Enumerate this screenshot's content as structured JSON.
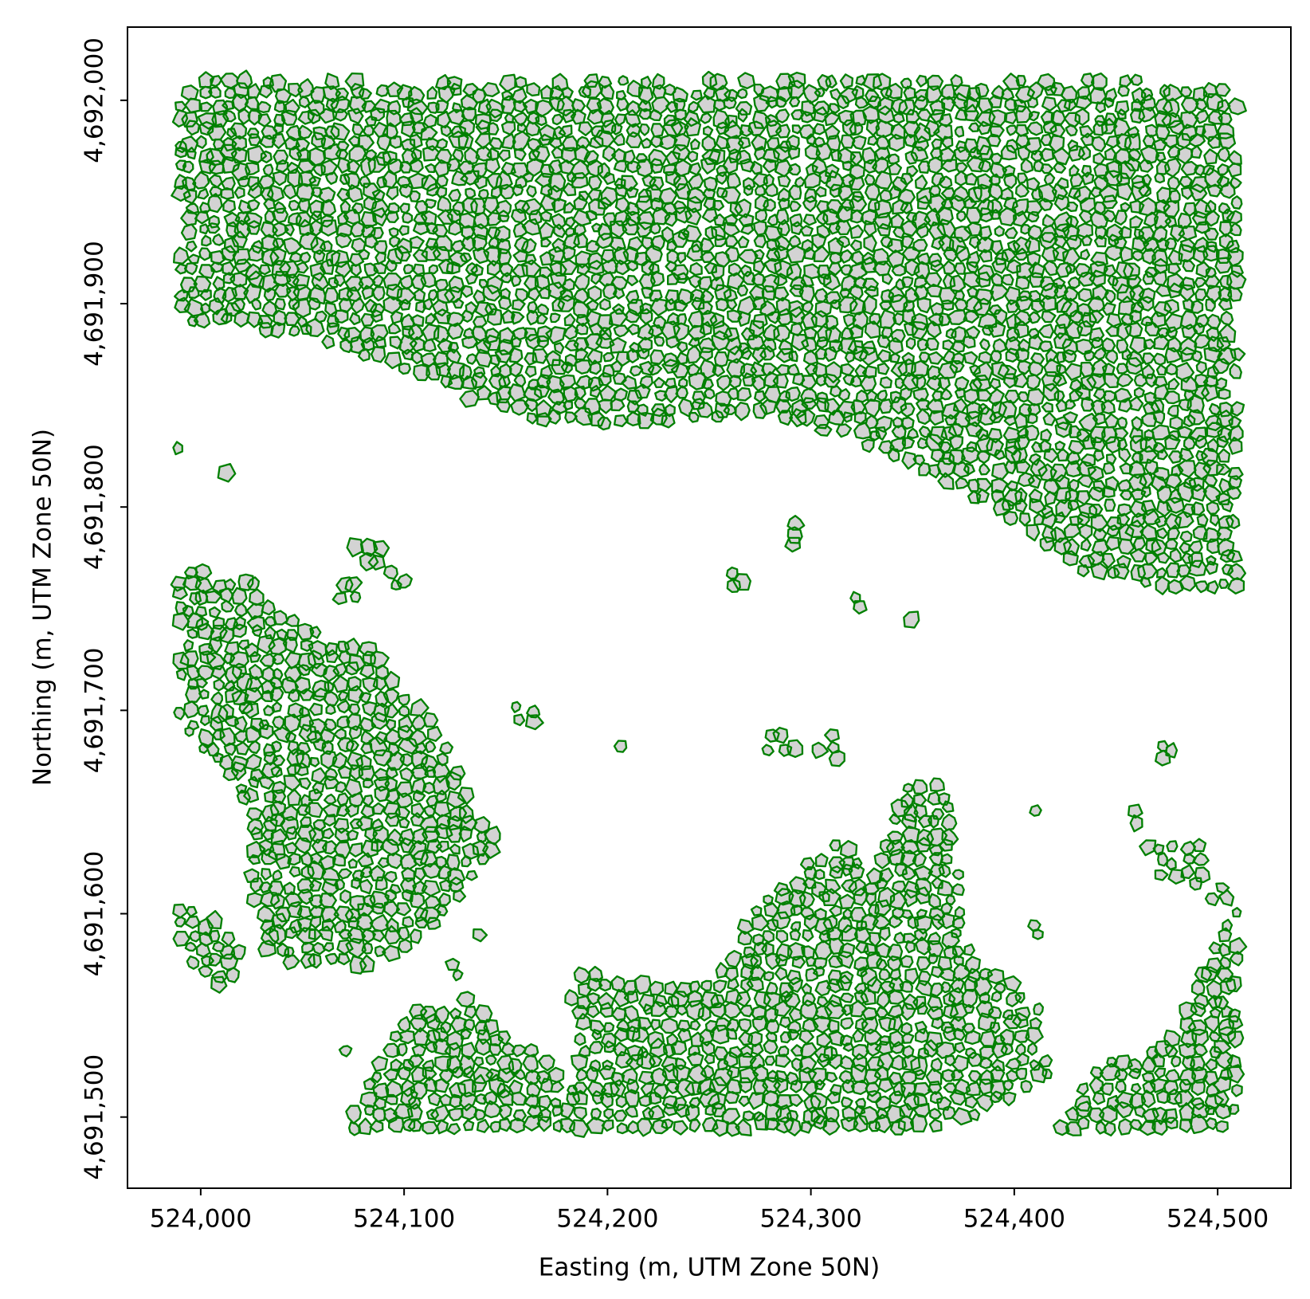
{
  "chart_data": {
    "type": "map",
    "x_label": "Easting (m, UTM Zone 50N)",
    "y_label": "Northing (m, UTM Zone 50N)",
    "xlim": [
      523964,
      524536
    ],
    "ylim": [
      4691465,
      4692036
    ],
    "xticks": [
      {
        "value": 524000,
        "label": "524,000"
      },
      {
        "value": 524100,
        "label": "524,100"
      },
      {
        "value": 524200,
        "label": "524,200"
      },
      {
        "value": 524300,
        "label": "524,300"
      },
      {
        "value": 524400,
        "label": "524,400"
      },
      {
        "value": 524500,
        "label": "524,500"
      }
    ],
    "yticks": [
      {
        "value": 4691500,
        "label": "4,691,500"
      },
      {
        "value": 4691600,
        "label": "4,691,600"
      },
      {
        "value": 4691700,
        "label": "4,691,700"
      },
      {
        "value": 4691800,
        "label": "4,691,800"
      },
      {
        "value": 4691900,
        "label": "4,691,900"
      },
      {
        "value": 4692000,
        "label": "4,692,000"
      }
    ],
    "color": "#008000",
    "fill": "#d3d3d3"
  }
}
